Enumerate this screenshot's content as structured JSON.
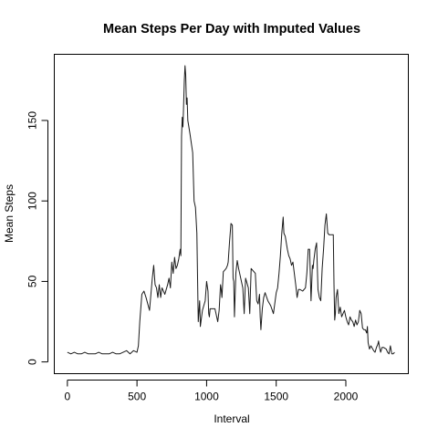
{
  "chart_data": {
    "type": "line",
    "title": "Mean Steps Per Day with Imputed Values",
    "xlabel": "Interval",
    "ylabel": "Mean Steps",
    "xlim": [
      -94,
      2449
    ],
    "ylim": [
      -7.3,
      191.1
    ],
    "x_ticks": [
      0,
      500,
      1000,
      1500,
      2000
    ],
    "y_ticks": [
      0,
      50,
      100,
      150
    ],
    "grid": false,
    "legend": "none",
    "series": [
      {
        "color": "#1a1a1a",
        "points": [
          [
            0,
            6
          ],
          [
            25,
            5
          ],
          [
            50,
            6
          ],
          [
            75,
            5
          ],
          [
            100,
            5
          ],
          [
            125,
            6
          ],
          [
            150,
            5
          ],
          [
            200,
            5
          ],
          [
            225,
            6
          ],
          [
            250,
            5
          ],
          [
            300,
            5
          ],
          [
            325,
            6
          ],
          [
            350,
            5
          ],
          [
            375,
            5
          ],
          [
            400,
            6
          ],
          [
            425,
            7
          ],
          [
            450,
            5
          ],
          [
            475,
            7
          ],
          [
            500,
            6
          ],
          [
            510,
            10
          ],
          [
            520,
            25
          ],
          [
            535,
            42
          ],
          [
            550,
            44
          ],
          [
            565,
            40
          ],
          [
            590,
            32
          ],
          [
            610,
            52
          ],
          [
            620,
            60
          ],
          [
            630,
            48
          ],
          [
            640,
            46
          ],
          [
            650,
            40
          ],
          [
            660,
            48
          ],
          [
            670,
            40
          ],
          [
            680,
            46
          ],
          [
            700,
            42
          ],
          [
            720,
            48
          ],
          [
            730,
            52
          ],
          [
            740,
            46
          ],
          [
            750,
            62
          ],
          [
            760,
            55
          ],
          [
            770,
            65
          ],
          [
            780,
            58
          ],
          [
            790,
            60
          ],
          [
            800,
            64
          ],
          [
            810,
            70
          ],
          [
            815,
            66
          ],
          [
            820,
            140
          ],
          [
            825,
            152
          ],
          [
            830,
            146
          ],
          [
            835,
            160
          ],
          [
            840,
            175
          ],
          [
            845,
            184
          ],
          [
            850,
            178
          ],
          [
            855,
            160
          ],
          [
            860,
            164
          ],
          [
            865,
            150
          ],
          [
            880,
            142
          ],
          [
            900,
            130
          ],
          [
            910,
            100
          ],
          [
            920,
            96
          ],
          [
            930,
            80
          ],
          [
            940,
            25
          ],
          [
            950,
            38
          ],
          [
            955,
            22
          ],
          [
            970,
            32
          ],
          [
            990,
            38
          ],
          [
            1000,
            50
          ],
          [
            1010,
            44
          ],
          [
            1015,
            30
          ],
          [
            1020,
            28
          ],
          [
            1025,
            33
          ],
          [
            1040,
            33
          ],
          [
            1060,
            33
          ],
          [
            1080,
            25
          ],
          [
            1090,
            32
          ],
          [
            1100,
            48
          ],
          [
            1105,
            45
          ],
          [
            1110,
            40
          ],
          [
            1120,
            56
          ],
          [
            1140,
            58
          ],
          [
            1150,
            60
          ],
          [
            1155,
            62
          ],
          [
            1165,
            75
          ],
          [
            1175,
            86
          ],
          [
            1185,
            85
          ],
          [
            1190,
            52
          ],
          [
            1195,
            50
          ],
          [
            1200,
            28
          ],
          [
            1210,
            55
          ],
          [
            1220,
            63
          ],
          [
            1230,
            58
          ],
          [
            1240,
            54
          ],
          [
            1250,
            50
          ],
          [
            1260,
            46
          ],
          [
            1270,
            30
          ],
          [
            1280,
            52
          ],
          [
            1300,
            46
          ],
          [
            1310,
            30
          ],
          [
            1320,
            58
          ],
          [
            1340,
            56
          ],
          [
            1350,
            55
          ],
          [
            1360,
            38
          ],
          [
            1370,
            36
          ],
          [
            1380,
            42
          ],
          [
            1385,
            28
          ],
          [
            1390,
            20
          ],
          [
            1400,
            33
          ],
          [
            1410,
            40
          ],
          [
            1420,
            43
          ],
          [
            1440,
            38
          ],
          [
            1460,
            35
          ],
          [
            1480,
            30
          ],
          [
            1500,
            43
          ],
          [
            1510,
            46
          ],
          [
            1520,
            55
          ],
          [
            1530,
            66
          ],
          [
            1540,
            80
          ],
          [
            1550,
            90
          ],
          [
            1555,
            80
          ],
          [
            1565,
            78
          ],
          [
            1580,
            70
          ],
          [
            1590,
            66
          ],
          [
            1600,
            64
          ],
          [
            1610,
            60
          ],
          [
            1620,
            62
          ],
          [
            1630,
            55
          ],
          [
            1640,
            48
          ],
          [
            1650,
            40
          ],
          [
            1660,
            45
          ],
          [
            1670,
            45
          ],
          [
            1690,
            44
          ],
          [
            1710,
            46
          ],
          [
            1720,
            55
          ],
          [
            1730,
            70
          ],
          [
            1740,
            70
          ],
          [
            1750,
            38
          ],
          [
            1760,
            60
          ],
          [
            1765,
            58
          ],
          [
            1770,
            63
          ],
          [
            1780,
            70
          ],
          [
            1790,
            74
          ],
          [
            1800,
            45
          ],
          [
            1810,
            40
          ],
          [
            1820,
            38
          ],
          [
            1830,
            58
          ],
          [
            1840,
            70
          ],
          [
            1850,
            85
          ],
          [
            1860,
            92
          ],
          [
            1870,
            80
          ],
          [
            1880,
            79
          ],
          [
            1900,
            79
          ],
          [
            1910,
            79
          ],
          [
            1915,
            48
          ],
          [
            1920,
            26
          ],
          [
            1925,
            30
          ],
          [
            1930,
            40
          ],
          [
            1940,
            45
          ],
          [
            1950,
            30
          ],
          [
            1960,
            34
          ],
          [
            1970,
            28
          ],
          [
            1980,
            30
          ],
          [
            1990,
            32
          ],
          [
            2000,
            28
          ],
          [
            2010,
            25
          ],
          [
            2020,
            23
          ],
          [
            2030,
            28
          ],
          [
            2040,
            26
          ],
          [
            2050,
            25
          ],
          [
            2060,
            22
          ],
          [
            2070,
            26
          ],
          [
            2080,
            23
          ],
          [
            2090,
            25
          ],
          [
            2100,
            32
          ],
          [
            2110,
            30
          ],
          [
            2120,
            21
          ],
          [
            2130,
            20
          ],
          [
            2140,
            20
          ],
          [
            2150,
            18
          ],
          [
            2155,
            22
          ],
          [
            2160,
            12
          ],
          [
            2170,
            8
          ],
          [
            2180,
            10
          ],
          [
            2200,
            7
          ],
          [
            2210,
            6
          ],
          [
            2220,
            9
          ],
          [
            2230,
            11
          ],
          [
            2235,
            13
          ],
          [
            2240,
            10
          ],
          [
            2250,
            6
          ],
          [
            2260,
            9
          ],
          [
            2270,
            9
          ],
          [
            2290,
            8
          ],
          [
            2300,
            6
          ],
          [
            2310,
            5
          ],
          [
            2320,
            10
          ],
          [
            2330,
            5
          ],
          [
            2340,
            5
          ],
          [
            2350,
            6
          ]
        ]
      }
    ]
  }
}
